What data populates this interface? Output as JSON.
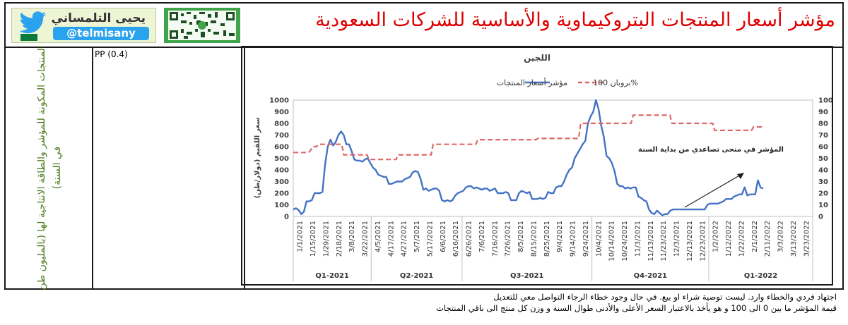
{
  "header": {
    "title": "مؤشر أسعار المنتجات البتروكيماوية والأساسية للشركات السعودية",
    "brand_name": "يحيى التلمساني",
    "brand_handle": "@telmisany"
  },
  "left_label": "المنتجات المكونة للمؤشر والطاقة الانتاجية لها (بالمليون طن في السنة)",
  "product_label": "PP (0.4)",
  "footer": {
    "line1": "اجتهاد فردي والخطاء وارد. ليست توصية شراء او بيع. في حال وجود خطاء الرجاء التواصل معي للتعديل",
    "line2": "قيمة المؤشر ما بين 0 الى 100 و هو يأخذ بالاعتبار السعر الأعلى والأدنى طوال السنة و وزن كل منتج الى باقي المنتجات"
  },
  "chart_data": {
    "type": "line",
    "title": "اللجين",
    "ylabel": "سعر اللقيم (دولار/طن)",
    "ylim": [
      0,
      1000
    ],
    "yticks": [
      0,
      100,
      200,
      300,
      400,
      500,
      600,
      700,
      800,
      900,
      1000
    ],
    "y2lim": [
      0,
      100
    ],
    "y2ticks": [
      0,
      10,
      20,
      30,
      40,
      50,
      60,
      70,
      80,
      90,
      100
    ],
    "x_tick_labels": [
      "1/1/2021",
      "1/15/2021",
      "1/29/2021",
      "2/18/2021",
      "3/8/2021",
      "3/22/2021",
      "4/5/2021",
      "4/17/2021",
      "4/27/2021",
      "5/7/2021",
      "5/17/2021",
      "6/6/2021",
      "6/16/2021",
      "6/26/2021",
      "7/6/2021",
      "7/16/2021",
      "7/26/2021",
      "8/5/2021",
      "8/15/2021",
      "8/25/2021",
      "9/4/2021",
      "9/14/2021",
      "9/24/2021",
      "10/4/2021",
      "10/14/2021",
      "10/24/2021",
      "11/3/2021",
      "11/13/2021",
      "11/23/2021",
      "12/3/2021",
      "12/13/2021",
      "12/23/2021",
      "1/2/2022",
      "1/12/2022",
      "1/22/2022",
      "2/1/2022",
      "2/11/2022",
      "3/3/2022",
      "3/13/2022",
      "3/23/2022"
    ],
    "quarters": [
      "Q1-2021",
      "Q2-2021",
      "Q3-2021",
      "Q4-2021",
      "Q1-2022"
    ],
    "legend_position": "top",
    "annotation": "المؤشر في منحى تصاعدي من بداية السنة",
    "series": [
      {
        "name": "مؤشر أسعار المنتجات",
        "axis": "left",
        "color": "#4472c4",
        "style": "solid",
        "values": [
          60,
          70,
          55,
          20,
          40,
          130,
          130,
          140,
          200,
          200,
          200,
          210,
          450,
          600,
          660,
          610,
          640,
          700,
          730,
          700,
          620,
          620,
          560,
          490,
          480,
          480,
          470,
          490,
          500,
          460,
          420,
          400,
          360,
          350,
          340,
          340,
          280,
          280,
          290,
          300,
          300,
          300,
          320,
          330,
          340,
          380,
          390,
          380,
          320,
          230,
          240,
          220,
          230,
          240,
          240,
          220,
          140,
          130,
          140,
          130,
          140,
          180,
          200,
          210,
          220,
          250,
          260,
          260,
          240,
          250,
          240,
          230,
          240,
          240,
          220,
          230,
          240,
          200,
          200,
          200,
          210,
          200,
          140,
          140,
          140,
          200,
          220,
          210,
          200,
          210,
          150,
          150,
          150,
          160,
          150,
          160,
          210,
          200,
          200,
          250,
          260,
          260,
          300,
          360,
          400,
          420,
          500,
          540,
          580,
          620,
          650,
          800,
          860,
          900,
          1000,
          920,
          780,
          680,
          520,
          500,
          460,
          390,
          280,
          260,
          260,
          240,
          250,
          240,
          250,
          250,
          170,
          160,
          140,
          130,
          60,
          30,
          20,
          50,
          30,
          10,
          20,
          20,
          50,
          60,
          60,
          60,
          60,
          60,
          60,
          60,
          60,
          60,
          60,
          60,
          60,
          60,
          100,
          110,
          110,
          110,
          110,
          120,
          130,
          150,
          150,
          150,
          170,
          180,
          190,
          190,
          250,
          180,
          190,
          190,
          190,
          310,
          250,
          240
        ]
      },
      {
        "name": "بروبان 100%",
        "axis": "right",
        "color": "#e06666",
        "style": "dashed",
        "values": [
          55,
          55,
          55,
          55,
          55,
          55,
          55,
          55,
          55,
          57,
          60,
          60,
          60,
          62,
          62,
          62,
          62,
          62,
          62,
          62,
          62,
          62,
          62,
          62,
          62,
          62,
          53,
          53,
          53,
          53,
          53,
          53,
          53,
          53,
          53,
          53,
          53,
          53,
          53,
          49,
          49,
          49,
          49,
          49,
          49,
          49,
          49,
          49,
          49,
          49,
          49,
          49,
          49,
          49,
          53,
          53,
          53,
          53,
          53,
          53,
          53,
          53,
          53,
          53,
          53,
          53,
          53,
          53,
          53,
          53,
          53,
          53,
          62,
          62,
          62,
          62,
          62,
          62,
          62,
          62,
          62,
          62,
          62,
          62,
          62,
          62,
          62,
          62,
          62,
          62,
          62,
          62,
          62,
          62,
          62,
          66,
          66,
          66,
          66,
          66,
          66,
          66,
          66,
          66,
          66,
          66,
          66,
          66,
          66,
          66,
          66,
          66,
          66,
          66,
          66,
          66,
          66,
          66,
          66,
          66,
          66,
          66,
          66,
          66,
          66,
          66,
          67,
          67,
          67,
          67,
          67,
          67,
          67,
          67,
          67,
          67,
          67,
          67,
          67,
          67,
          67,
          67,
          67,
          67,
          67,
          67,
          67,
          67,
          80,
          80,
          80,
          80,
          80,
          80,
          80,
          80,
          80,
          80,
          80,
          80,
          80,
          80,
          80,
          80,
          80,
          80,
          80,
          80,
          80,
          80,
          80,
          80,
          80,
          80,
          80,
          87,
          87,
          87,
          87,
          87,
          87,
          87,
          87,
          87,
          87,
          87,
          87,
          87,
          87,
          87,
          87,
          87,
          87,
          87,
          87,
          80,
          80,
          80,
          80,
          80,
          80,
          80,
          80,
          80,
          80,
          80,
          80,
          80,
          80,
          80,
          80,
          80,
          80,
          80,
          80,
          80,
          80,
          74,
          74,
          74,
          74,
          74,
          74,
          74,
          74,
          74,
          74,
          74,
          74,
          74,
          74,
          74,
          74,
          74,
          74,
          74,
          74,
          77,
          77,
          77,
          77,
          77,
          77
        ]
      }
    ]
  }
}
